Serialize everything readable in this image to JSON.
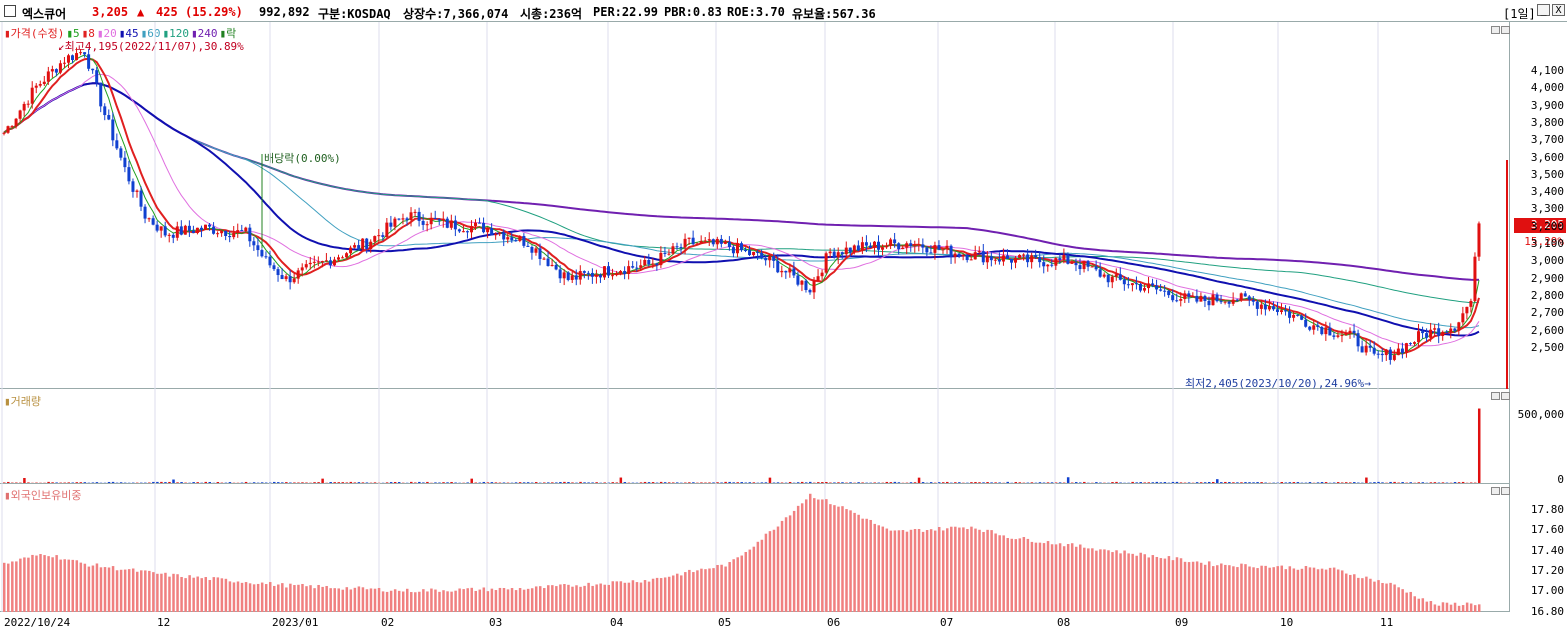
{
  "header": {
    "name": "엑스큐어",
    "price": "3,205",
    "arrow": "▲",
    "change": "425",
    "change_pct": "(15.29%)",
    "volume": "992,892",
    "market": "구분:KOSDAQ",
    "shares": "상장수:7,366,074",
    "mcap": "시총:236억",
    "per": "PER:22.99",
    "pbr": "PBR:0.83",
    "roe": "ROE:3.70",
    "float": "유보율:567.36",
    "period": "[1일]",
    "btn_min": "_",
    "btn_close": "X"
  },
  "price_pane": {
    "legend": [
      "가격(수정)",
      "5",
      "8",
      "20",
      "45",
      "60",
      "120",
      "240",
      "락"
    ],
    "legend_colors": [
      "#e02020",
      "#20a020",
      "#e02020",
      "#e070e0",
      "#1010b0",
      "#40a0c0",
      "#20a080",
      "#7020b0",
      "#208020"
    ],
    "high_note": "최고4,195(2022/11/07),30.89%",
    "low_note": "최저2,405(2023/10/20),24.96%",
    "div_note": "배당락(0.00%)",
    "yticks": [
      "4,100",
      "4,000",
      "3,900",
      "3,800",
      "3,700",
      "3,600",
      "3,500",
      "3,400",
      "3,300",
      "3,200",
      "3,100",
      "3,000",
      "2,900",
      "2,800",
      "2,700",
      "2,600",
      "2,500"
    ],
    "current": "3,205",
    "current_pct": "15.29%"
  },
  "volume_pane": {
    "legend": "거래량",
    "yticks": [
      "500,000",
      "0"
    ]
  },
  "foreign_pane": {
    "legend": "외국인보유비중",
    "yticks": [
      "17.80",
      "17.60",
      "17.40",
      "17.20",
      "17.00",
      "16.80"
    ]
  },
  "xaxis": [
    "2022/10/24",
    "12",
    "2023/01",
    "02",
    "03",
    "04",
    "05",
    "06",
    "07",
    "08",
    "09",
    "10",
    "11"
  ],
  "chart_data": {
    "type": "candlestick",
    "title": "엑스큐어",
    "ylim": [
      2405,
      4195
    ],
    "ma_periods": [
      5,
      8,
      20,
      45,
      60,
      120,
      240
    ],
    "price_anchors": [
      [
        0,
        3700
      ],
      [
        8,
        3950
      ],
      [
        15,
        4100
      ],
      [
        20,
        4150
      ],
      [
        25,
        3800
      ],
      [
        30,
        3500
      ],
      [
        35,
        3250
      ],
      [
        40,
        3150
      ],
      [
        50,
        3180
      ],
      [
        60,
        3150
      ],
      [
        65,
        3000
      ],
      [
        70,
        2900
      ],
      [
        75,
        2950
      ],
      [
        80,
        3000
      ],
      [
        90,
        3100
      ],
      [
        100,
        3250
      ],
      [
        110,
        3200
      ],
      [
        120,
        3180
      ],
      [
        130,
        3100
      ],
      [
        140,
        2900
      ],
      [
        150,
        2950
      ],
      [
        160,
        2980
      ],
      [
        170,
        3100
      ],
      [
        180,
        3080
      ],
      [
        190,
        3000
      ],
      [
        200,
        2850
      ],
      [
        205,
        3050
      ],
      [
        215,
        3080
      ],
      [
        225,
        3100
      ],
      [
        235,
        3050
      ],
      [
        245,
        3020
      ],
      [
        255,
        3000
      ],
      [
        265,
        3000
      ],
      [
        275,
        2900
      ],
      [
        285,
        2850
      ],
      [
        295,
        2780
      ],
      [
        305,
        2800
      ],
      [
        315,
        2750
      ],
      [
        325,
        2650
      ],
      [
        335,
        2580
      ],
      [
        340,
        2470
      ],
      [
        345,
        2500
      ],
      [
        352,
        2600
      ],
      [
        360,
        2650
      ],
      [
        364,
        2780
      ],
      [
        366,
        3205
      ]
    ],
    "volume_max": 992892,
    "foreign_range": [
      16.78,
      17.9
    ]
  }
}
